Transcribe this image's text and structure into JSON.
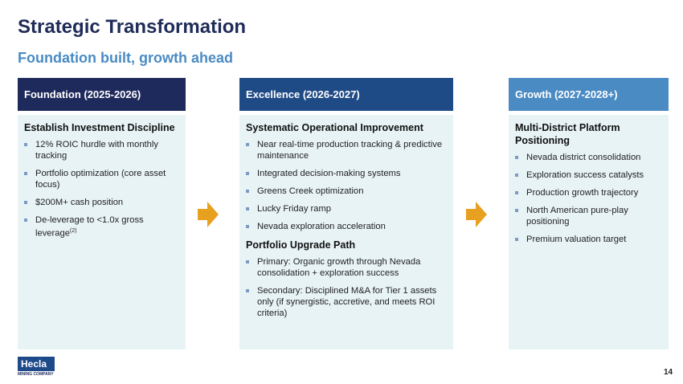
{
  "header": {
    "title": "Strategic Transformation",
    "subtitle": "Foundation built, growth ahead"
  },
  "columns": [
    {
      "header": "Foundation (2025-2026)",
      "sections": [
        {
          "heading": "Establish Investment Discipline",
          "bullets": [
            {
              "text": "12% ROIC hurdle with monthly tracking"
            },
            {
              "text": "Portfolio optimization (core asset focus)"
            },
            {
              "text": "$200M+ cash position"
            },
            {
              "text": "De-leverage to <1.0x gross leverage",
              "sup": "(2)"
            }
          ]
        }
      ]
    },
    {
      "header": "Excellence (2026-2027)",
      "sections": [
        {
          "heading": "Systematic Operational Improvement",
          "bullets": [
            {
              "text": "Near real-time production tracking & predictive maintenance"
            },
            {
              "text": "Integrated decision-making systems"
            },
            {
              "text": "Greens Creek optimization"
            },
            {
              "text": "Lucky Friday ramp"
            },
            {
              "text": "Nevada exploration acceleration"
            }
          ]
        },
        {
          "heading": "Portfolio Upgrade Path",
          "bullets": [
            {
              "text": "Primary: Organic growth through Nevada consolidation + exploration success"
            },
            {
              "text": "Secondary: Disciplined M&A for Tier 1 assets only (if synergistic, accretive, and meets ROI criteria)"
            }
          ]
        }
      ]
    },
    {
      "header": "Growth (2027-2028+)",
      "sections": [
        {
          "heading": "Multi-District Platform Positioning",
          "bullets": [
            {
              "text": "Nevada district consolidation"
            },
            {
              "text": "Exploration success catalysts"
            },
            {
              "text": "Production growth trajectory"
            },
            {
              "text": "North American pure-play positioning"
            },
            {
              "text": "Premium valuation target"
            }
          ]
        }
      ]
    }
  ],
  "footer": {
    "logo": "Hecla",
    "logo_sub": "MINING COMPANY",
    "page": "14"
  }
}
